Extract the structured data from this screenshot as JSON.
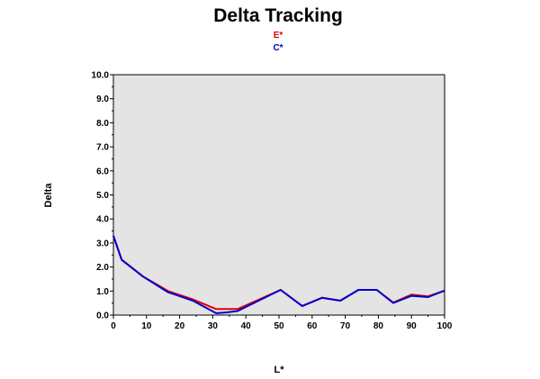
{
  "chart_data": {
    "type": "line",
    "title": "Delta Tracking",
    "xlabel": "L*",
    "ylabel": "Delta",
    "xlim": [
      0,
      100
    ],
    "ylim": [
      0,
      10
    ],
    "x_ticks": [
      "0",
      "10",
      "20",
      "30",
      "40",
      "50",
      "60",
      "70",
      "80",
      "90",
      "100"
    ],
    "y_ticks": [
      "0.0",
      "1.0",
      "2.0",
      "3.0",
      "4.0",
      "5.0",
      "6.0",
      "7.0",
      "8.0",
      "9.0",
      "10.0"
    ],
    "grid": false,
    "legend_position": "top-center",
    "plot_background": "#e4e4e4",
    "series": [
      {
        "name": "E*",
        "color": "#e00000",
        "points": [
          [
            0,
            3.3
          ],
          [
            2.5,
            2.3
          ],
          [
            9,
            1.6
          ],
          [
            16.5,
            1.0
          ],
          [
            24,
            0.65
          ],
          [
            31,
            0.25
          ],
          [
            37.5,
            0.25
          ],
          [
            50.5,
            1.05
          ],
          [
            57,
            0.38
          ],
          [
            63,
            0.72
          ],
          [
            68.5,
            0.6
          ],
          [
            74,
            1.05
          ],
          [
            79.5,
            1.05
          ],
          [
            84.5,
            0.52
          ],
          [
            90,
            0.85
          ],
          [
            95,
            0.78
          ],
          [
            100,
            1.02
          ]
        ]
      },
      {
        "name": "C*",
        "color": "#0000d0",
        "points": [
          [
            0,
            3.3
          ],
          [
            2.5,
            2.3
          ],
          [
            9,
            1.6
          ],
          [
            16.5,
            0.95
          ],
          [
            24,
            0.6
          ],
          [
            31,
            0.08
          ],
          [
            33.5,
            0.1
          ],
          [
            37.5,
            0.17
          ],
          [
            50.5,
            1.05
          ],
          [
            57,
            0.38
          ],
          [
            63,
            0.72
          ],
          [
            68.5,
            0.6
          ],
          [
            74,
            1.05
          ],
          [
            79.5,
            1.05
          ],
          [
            84.5,
            0.5
          ],
          [
            90,
            0.8
          ],
          [
            95,
            0.75
          ],
          [
            100,
            1.02
          ]
        ]
      }
    ]
  }
}
